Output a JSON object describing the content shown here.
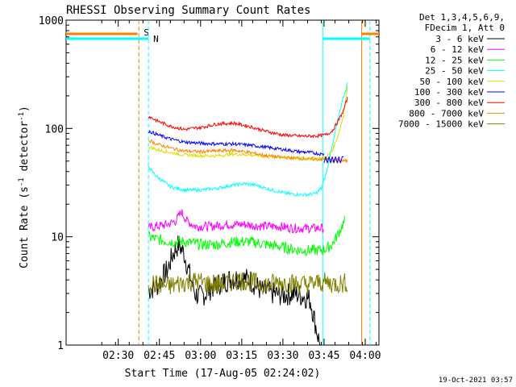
{
  "chart_data": {
    "type": "line",
    "title": "RHESSI Observing Summary Count Rates",
    "xlabel": "Start Time (17-Aug-05 02:24:02)",
    "ylabel_main": "Count Rate (s",
    "ylabel_sup1": "-1",
    "ylabel_mid": " detector",
    "ylabel_sup2": "-1",
    "ylabel_end": ")",
    "yscale": "log",
    "ylim": [
      1,
      1000
    ],
    "xlim_minutes": [
      -13,
      101
    ],
    "x_ticks": [
      "02:30",
      "02:45",
      "03:00",
      "03:15",
      "03:30",
      "03:45",
      "04:00"
    ],
    "x_tick_minutes": [
      6,
      21,
      36,
      51,
      66,
      81,
      96
    ],
    "y_ticks": [
      "1",
      "10",
      "100",
      "1000"
    ],
    "legend_header": [
      "Det 1,3,4,5,6,9,",
      "FDecim 1, Att 0"
    ],
    "timestamp": "19-Oct-2021 03:57",
    "markers": [
      {
        "label": "S",
        "minute": 13.5,
        "color": "#ff8000"
      },
      {
        "label": "N",
        "minute": 17,
        "color": "#00ffff"
      }
    ],
    "series": [
      {
        "name": "3 - 6 keV",
        "color": "#000000",
        "x": [
          17,
          20,
          24,
          26,
          28,
          30,
          32,
          34,
          35.5,
          38,
          40,
          43,
          46,
          50,
          54,
          58,
          62,
          66,
          70,
          74,
          76,
          78,
          79.5
        ],
        "y": [
          3.2,
          3.5,
          5.0,
          7.0,
          8.5,
          7.0,
          4.5,
          3.0,
          2.8,
          3.0,
          3.4,
          3.7,
          4.0,
          4.2,
          4.0,
          3.2,
          3.0,
          2.9,
          3.0,
          2.8,
          2.6,
          1.5,
          1.0
        ]
      },
      {
        "name": "6 - 12 keV",
        "color": "#ff00ff",
        "x": [
          17,
          20,
          24,
          27,
          29,
          31,
          34,
          40,
          46,
          52,
          58,
          64,
          70,
          74,
          77,
          80,
          81
        ],
        "y": [
          12,
          12.5,
          13,
          14,
          17,
          14,
          12.5,
          12.5,
          13,
          13,
          12.5,
          12.5,
          12,
          12,
          12,
          12,
          12
        ]
      },
      {
        "name": "12 - 25 keV",
        "color": "#00ff00",
        "x": [
          17,
          20,
          25,
          30,
          36,
          42,
          48,
          54,
          60,
          66,
          72,
          76,
          78,
          80,
          82,
          84,
          86,
          88.5
        ],
        "y": [
          10,
          9.5,
          9,
          9,
          8.5,
          8.5,
          9,
          9,
          8.5,
          8,
          7.5,
          7.5,
          7.5,
          7.5,
          7.8,
          8.5,
          10.5,
          14
        ]
      },
      {
        "name": "25 - 50 keV",
        "color": "#00ffff",
        "x": [
          17,
          20,
          25,
          30,
          36,
          42,
          48,
          52,
          56,
          62,
          68,
          72,
          75,
          78,
          80,
          82,
          84,
          86,
          88,
          89.5
        ],
        "y": [
          44,
          36,
          29,
          27,
          27,
          28,
          30,
          31,
          30,
          27,
          25,
          24.5,
          24.5,
          25,
          28,
          40,
          70,
          120,
          190,
          260
        ]
      },
      {
        "name": "50 - 100 keV",
        "color": "#dddd00",
        "x": [
          17,
          20,
          25,
          30,
          36,
          42,
          48,
          54,
          60,
          66,
          72,
          76,
          80,
          82,
          84,
          86,
          88,
          89.5
        ],
        "y": [
          68,
          64,
          60,
          57,
          56,
          56,
          58,
          57,
          55,
          54,
          53,
          53,
          53,
          55,
          62,
          85,
          130,
          240
        ]
      },
      {
        "name": "100 - 300 keV",
        "color": "#0000ff",
        "x": [
          17,
          20,
          25,
          30,
          36,
          42,
          48,
          54,
          60,
          66,
          72,
          76,
          80,
          81
        ],
        "y": [
          95,
          88,
          80,
          75,
          73,
          72,
          72,
          70,
          67,
          64,
          61,
          60,
          58,
          58
        ]
      },
      {
        "name": "300 - 800 keV",
        "color": "#ff0000",
        "x": [
          17,
          20,
          25,
          30,
          36,
          42,
          48,
          54,
          60,
          66,
          72,
          76,
          80,
          82,
          84,
          86,
          88,
          89.5
        ],
        "y": [
          130,
          118,
          105,
          98,
          102,
          110,
          112,
          104,
          94,
          87,
          85,
          85,
          86,
          88,
          95,
          115,
          145,
          190
        ]
      },
      {
        "name": "800 - 7000 keV",
        "color": "#ff8000",
        "x": [
          17,
          20,
          25,
          30,
          36,
          42,
          48,
          54,
          60,
          66,
          72,
          76,
          80,
          84,
          89.5
        ],
        "y": [
          78,
          72,
          66,
          62,
          61,
          62,
          63,
          60,
          56,
          54,
          53,
          52,
          52,
          51,
          50
        ]
      },
      {
        "name": "7000 - 15000 keV",
        "color": "#808000",
        "x": [
          17,
          20,
          25,
          30,
          35,
          40,
          45,
          50,
          55,
          60,
          65,
          70,
          75,
          80,
          84,
          88,
          89.5
        ],
        "y": [
          3.8,
          3.6,
          3.5,
          3.8,
          3.9,
          3.6,
          3.7,
          4.0,
          3.8,
          3.6,
          3.8,
          3.7,
          3.6,
          3.8,
          3.7,
          3.7,
          3.8
        ]
      }
    ],
    "extras": {
      "segment_100_300_tail": {
        "x": [
          81,
          81.6,
          82.2,
          82.8,
          83.4,
          84,
          84.6,
          85.2,
          85.8,
          86.4,
          87,
          87.6,
          88.2
        ],
        "y": [
          48,
          55,
          48,
          55,
          48,
          55,
          48,
          55,
          48,
          55,
          48,
          55,
          55
        ]
      }
    }
  }
}
